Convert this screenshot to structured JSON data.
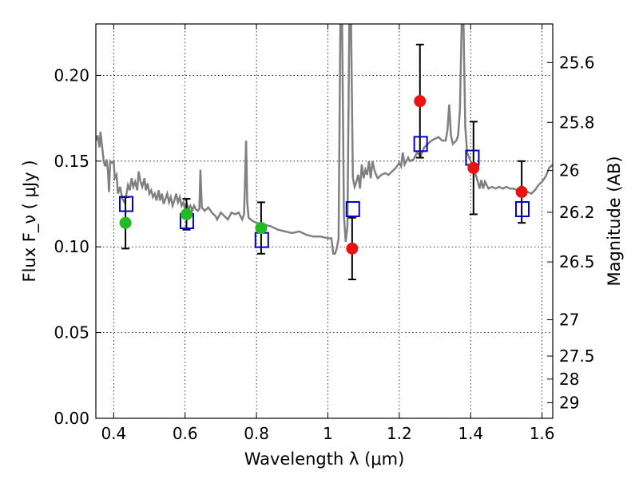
{
  "chart_data": {
    "type": "scatter",
    "title": "",
    "xlabel": "Wavelength  λ (μm)",
    "ylabel": "Flux  F_ν  ( μJy )",
    "y2label": "Magnitude (AB)",
    "xlim": [
      0.35,
      1.63
    ],
    "ylim": [
      0.0,
      0.23
    ],
    "grid": true,
    "x_ticks": [
      0.4,
      0.6,
      0.8,
      1.0,
      1.2,
      1.4,
      1.6
    ],
    "x_tick_labels": [
      "0.4",
      "0.6",
      "0.8",
      "1",
      "1.2",
      "1.4",
      "1.6"
    ],
    "y_ticks": [
      0.0,
      0.05,
      0.1,
      0.15,
      0.2
    ],
    "y_tick_labels": [
      "0.00",
      "0.05",
      "0.10",
      "0.15",
      "0.20"
    ],
    "y2_ticks": [
      {
        "label": "25.6",
        "flux": 0.2075
      },
      {
        "label": "25.8",
        "flux": 0.1726
      },
      {
        "label": "26",
        "flux": 0.1445
      },
      {
        "label": "26.2",
        "flux": 0.1202
      },
      {
        "label": "26.5",
        "flux": 0.0912
      },
      {
        "label": "27",
        "flux": 0.0575
      },
      {
        "label": "27.5",
        "flux": 0.0363
      },
      {
        "label": "28",
        "flux": 0.0229
      },
      {
        "label": "29",
        "flux": 0.0091
      }
    ],
    "series": [
      {
        "kind": "spectrum",
        "color": "#808080",
        "points": [
          [
            0.35,
            0.162
          ],
          [
            0.355,
            0.165
          ],
          [
            0.36,
            0.158
          ],
          [
            0.363,
            0.167
          ],
          [
            0.368,
            0.158
          ],
          [
            0.372,
            0.15
          ],
          [
            0.376,
            0.147
          ],
          [
            0.38,
            0.151
          ],
          [
            0.384,
            0.144
          ],
          [
            0.387,
            0.132
          ],
          [
            0.39,
            0.15
          ],
          [
            0.395,
            0.149
          ],
          [
            0.4,
            0.15
          ],
          [
            0.403,
            0.14
          ],
          [
            0.408,
            0.142
          ],
          [
            0.412,
            0.131
          ],
          [
            0.418,
            0.135
          ],
          [
            0.424,
            0.128
          ],
          [
            0.43,
            0.126
          ],
          [
            0.436,
            0.131
          ],
          [
            0.44,
            0.136
          ],
          [
            0.445,
            0.133
          ],
          [
            0.45,
            0.14
          ],
          [
            0.455,
            0.135
          ],
          [
            0.46,
            0.138
          ],
          [
            0.466,
            0.133
          ],
          [
            0.47,
            0.144
          ],
          [
            0.475,
            0.138
          ],
          [
            0.48,
            0.135
          ],
          [
            0.486,
            0.14
          ],
          [
            0.49,
            0.133
          ],
          [
            0.495,
            0.137
          ],
          [
            0.5,
            0.131
          ],
          [
            0.505,
            0.133
          ],
          [
            0.51,
            0.129
          ],
          [
            0.515,
            0.131
          ],
          [
            0.52,
            0.127
          ],
          [
            0.526,
            0.133
          ],
          [
            0.53,
            0.127
          ],
          [
            0.535,
            0.131
          ],
          [
            0.54,
            0.125
          ],
          [
            0.545,
            0.128
          ],
          [
            0.55,
            0.131
          ],
          [
            0.555,
            0.126
          ],
          [
            0.56,
            0.129
          ],
          [
            0.565,
            0.124
          ],
          [
            0.57,
            0.127
          ],
          [
            0.575,
            0.131
          ],
          [
            0.58,
            0.126
          ],
          [
            0.585,
            0.129
          ],
          [
            0.59,
            0.124
          ],
          [
            0.595,
            0.126
          ],
          [
            0.6,
            0.122
          ],
          [
            0.605,
            0.125
          ],
          [
            0.61,
            0.122
          ],
          [
            0.615,
            0.124
          ],
          [
            0.62,
            0.121
          ],
          [
            0.625,
            0.124
          ],
          [
            0.63,
            0.122
          ],
          [
            0.635,
            0.121
          ],
          [
            0.64,
            0.122
          ],
          [
            0.643,
            0.145
          ],
          [
            0.647,
            0.123
          ],
          [
            0.655,
            0.121
          ],
          [
            0.665,
            0.123
          ],
          [
            0.675,
            0.12
          ],
          [
            0.685,
            0.118
          ],
          [
            0.69,
            0.116
          ],
          [
            0.7,
            0.12
          ],
          [
            0.71,
            0.118
          ],
          [
            0.72,
            0.116
          ],
          [
            0.73,
            0.12
          ],
          [
            0.74,
            0.119
          ],
          [
            0.75,
            0.12
          ],
          [
            0.76,
            0.116
          ],
          [
            0.765,
            0.119
          ],
          [
            0.768,
            0.138
          ],
          [
            0.771,
            0.162
          ],
          [
            0.774,
            0.126
          ],
          [
            0.778,
            0.117
          ],
          [
            0.79,
            0.115
          ],
          [
            0.8,
            0.114
          ],
          [
            0.82,
            0.113
          ],
          [
            0.84,
            0.112
          ],
          [
            0.86,
            0.11
          ],
          [
            0.88,
            0.109
          ],
          [
            0.9,
            0.108
          ],
          [
            0.92,
            0.109
          ],
          [
            0.94,
            0.107
          ],
          [
            0.96,
            0.106
          ],
          [
            0.98,
            0.106
          ],
          [
            1.0,
            0.105
          ],
          [
            1.01,
            0.105
          ],
          [
            1.015,
            0.096
          ],
          [
            1.02,
            0.096
          ],
          [
            1.025,
            0.099
          ],
          [
            1.03,
            0.105
          ],
          [
            1.035,
            0.23
          ],
          [
            1.04,
            0.23
          ],
          [
            1.045,
            0.118
          ],
          [
            1.05,
            0.103
          ],
          [
            1.055,
            0.112
          ],
          [
            1.06,
            0.23
          ],
          [
            1.065,
            0.23
          ],
          [
            1.07,
            0.14
          ],
          [
            1.075,
            0.135
          ],
          [
            1.08,
            0.138
          ],
          [
            1.085,
            0.142
          ],
          [
            1.09,
            0.134
          ],
          [
            1.095,
            0.148
          ],
          [
            1.1,
            0.14
          ],
          [
            1.105,
            0.145
          ],
          [
            1.11,
            0.142
          ],
          [
            1.115,
            0.15
          ],
          [
            1.12,
            0.14
          ],
          [
            1.125,
            0.15
          ],
          [
            1.13,
            0.145
          ],
          [
            1.135,
            0.142
          ],
          [
            1.14,
            0.14
          ],
          [
            1.15,
            0.142
          ],
          [
            1.16,
            0.143
          ],
          [
            1.17,
            0.142
          ],
          [
            1.18,
            0.144
          ],
          [
            1.19,
            0.146
          ],
          [
            1.2,
            0.149
          ],
          [
            1.205,
            0.147
          ],
          [
            1.21,
            0.155
          ],
          [
            1.215,
            0.148
          ],
          [
            1.22,
            0.15
          ],
          [
            1.225,
            0.152
          ],
          [
            1.23,
            0.15
          ],
          [
            1.24,
            0.151
          ],
          [
            1.25,
            0.155
          ],
          [
            1.26,
            0.153
          ],
          [
            1.27,
            0.158
          ],
          [
            1.28,
            0.16
          ],
          [
            1.29,
            0.162
          ],
          [
            1.3,
            0.163
          ],
          [
            1.31,
            0.164
          ],
          [
            1.32,
            0.162
          ],
          [
            1.33,
            0.162
          ],
          [
            1.335,
            0.168
          ],
          [
            1.34,
            0.183
          ],
          [
            1.345,
            0.165
          ],
          [
            1.35,
            0.16
          ],
          [
            1.36,
            0.162
          ],
          [
            1.365,
            0.165
          ],
          [
            1.37,
            0.18
          ],
          [
            1.375,
            0.23
          ],
          [
            1.38,
            0.23
          ],
          [
            1.385,
            0.17
          ],
          [
            1.39,
            0.155
          ],
          [
            1.4,
            0.15
          ],
          [
            1.41,
            0.145
          ],
          [
            1.42,
            0.138
          ],
          [
            1.425,
            0.134
          ],
          [
            1.43,
            0.139
          ],
          [
            1.435,
            0.134
          ],
          [
            1.44,
            0.138
          ],
          [
            1.45,
            0.134
          ],
          [
            1.46,
            0.135
          ],
          [
            1.47,
            0.134
          ],
          [
            1.48,
            0.135
          ],
          [
            1.49,
            0.134
          ],
          [
            1.5,
            0.135
          ],
          [
            1.51,
            0.134
          ],
          [
            1.52,
            0.134
          ],
          [
            1.53,
            0.133
          ],
          [
            1.54,
            0.135
          ],
          [
            1.55,
            0.133
          ],
          [
            1.56,
            0.132
          ],
          [
            1.57,
            0.131
          ],
          [
            1.58,
            0.133
          ],
          [
            1.59,
            0.136
          ],
          [
            1.6,
            0.138
          ],
          [
            1.61,
            0.141
          ],
          [
            1.62,
            0.146
          ],
          [
            1.63,
            0.148
          ]
        ]
      },
      {
        "kind": "model-squares",
        "color": "#0000c0",
        "points": [
          [
            0.435,
            0.125
          ],
          [
            0.605,
            0.115
          ],
          [
            0.815,
            0.104
          ],
          [
            1.07,
            0.122
          ],
          [
            1.26,
            0.16
          ],
          [
            1.405,
            0.152
          ],
          [
            1.545,
            0.122
          ]
        ]
      },
      {
        "kind": "observed-green",
        "color": "#22bb22",
        "points": [
          {
            "x": 0.433,
            "y": 0.114,
            "err": 0.015
          },
          {
            "x": 0.604,
            "y": 0.119,
            "err": 0.009
          },
          {
            "x": 0.813,
            "y": 0.111,
            "err": 0.015
          }
        ]
      },
      {
        "kind": "observed-red",
        "color": "#ee1111",
        "points": [
          {
            "x": 1.068,
            "y": 0.099,
            "err": 0.018
          },
          {
            "x": 1.258,
            "y": 0.185,
            "err": 0.033
          },
          {
            "x": 1.408,
            "y": 0.146,
            "err": 0.027
          },
          {
            "x": 1.543,
            "y": 0.132,
            "err": 0.018
          }
        ]
      }
    ]
  }
}
